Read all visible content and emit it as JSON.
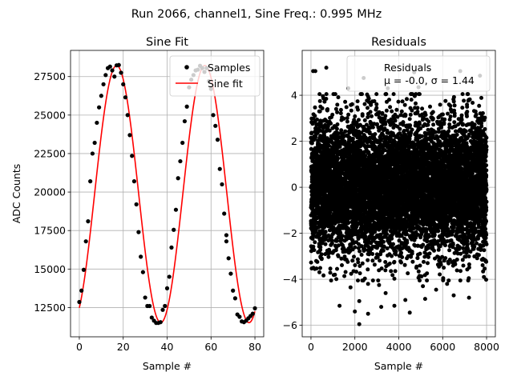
{
  "suptitle": "Run 2066, channel1, Sine Freq.: 0.995 MHz",
  "colors": {
    "samples": "#000000",
    "fit": "#ff0000",
    "residuals": "#000000"
  },
  "chart_data": [
    {
      "type": "line",
      "title": "Sine Fit",
      "xlabel": "Sample #",
      "ylabel": "ADC Counts",
      "xlim": [
        -4,
        84
      ],
      "ylim": [
        10600,
        29200
      ],
      "xticks": [
        0,
        20,
        40,
        60,
        80
      ],
      "xtick_labels": [
        "0",
        "20",
        "40",
        "60",
        "80"
      ],
      "yticks": [
        12500,
        15000,
        17500,
        20000,
        22500,
        25000,
        27500
      ],
      "ytick_labels": [
        "12500",
        "15000",
        "17500",
        "20000",
        "22500",
        "25000",
        "27500"
      ],
      "grid": true,
      "fit_model": {
        "offset": 19870,
        "amplitude": 8350,
        "period_samples": 40.2,
        "peak_at_sample": 17,
        "x_range": [
          0,
          80
        ]
      },
      "legend": {
        "location": "upper right",
        "entries": [
          "Samples",
          "Sine fit"
        ]
      },
      "series": [
        {
          "name": "Samples",
          "style": "dots",
          "x": [
            0,
            1,
            2,
            3,
            4,
            5,
            6,
            7,
            8,
            9,
            10,
            11,
            12,
            13,
            14,
            15,
            16,
            17,
            18,
            19,
            20,
            21,
            22,
            23,
            24,
            25,
            26,
            27,
            28,
            29,
            30,
            31,
            32,
            33,
            34,
            35,
            36,
            37,
            38,
            39,
            40,
            41,
            42,
            43,
            44,
            45,
            46,
            47,
            48,
            49,
            50,
            51,
            52,
            53,
            54,
            55,
            56,
            57,
            58,
            59,
            60,
            61,
            62,
            63,
            64,
            65,
            66,
            67,
            67,
            68,
            69,
            70,
            71,
            72,
            73,
            74,
            75,
            76,
            77,
            78,
            79,
            80
          ],
          "y": [
            12860,
            13600,
            14950,
            16800,
            18100,
            20700,
            22500,
            23200,
            24500,
            25500,
            26250,
            27000,
            27600,
            28050,
            28150,
            27900,
            27500,
            28230,
            28250,
            27750,
            27000,
            26150,
            25000,
            23700,
            22350,
            20700,
            19200,
            17400,
            15800,
            14800,
            13150,
            12600,
            12600,
            11850,
            11650,
            11500,
            11500,
            11550,
            12350,
            12600,
            13750,
            14500,
            16400,
            17550,
            18850,
            20900,
            22000,
            23200,
            24600,
            25550,
            26800,
            27300,
            27600,
            27900,
            27950,
            28200,
            28050,
            27800,
            28050,
            27200,
            26700,
            25000,
            24300,
            23400,
            21500,
            20500,
            18600,
            17200,
            16800,
            15700,
            14700,
            13600,
            13100,
            12050,
            11900,
            11600,
            11550,
            11650,
            11800,
            11950,
            12100,
            12450
          ]
        },
        {
          "name": "Sine fit",
          "style": "line"
        }
      ]
    },
    {
      "type": "scatter",
      "title": "Residuals",
      "xlabel": "Sample #",
      "ylabel": "",
      "xlim": [
        -400,
        8400
      ],
      "ylim": [
        -6.5,
        5.95
      ],
      "xticks": [
        0,
        2000,
        4000,
        6000,
        8000
      ],
      "xtick_labels": [
        "0",
        "2000",
        "4000",
        "6000",
        "8000"
      ],
      "yticks": [
        -6,
        -4,
        -2,
        0,
        2,
        4
      ],
      "ytick_labels": [
        "−6",
        "−4",
        "−2",
        "0",
        "2",
        "4"
      ],
      "grid": true,
      "n_points": 8000,
      "mean": -0.0,
      "sigma": 1.44,
      "legend": {
        "location": "upper right",
        "entries": [
          "Residuals",
          "μ = -0.0, σ = 1.44"
        ]
      },
      "outliers": {
        "x": [
          100,
          200,
          700,
          1300,
          1700,
          2000,
          2200,
          2400,
          2600,
          3200,
          3800,
          4500,
          4700,
          5200,
          5700,
          6200,
          6800,
          7200,
          7700,
          2200,
          3400,
          5100,
          4300,
          1800,
          2600,
          3100,
          3500,
          4900,
          6500
        ],
        "y": [
          5.05,
          5.05,
          5.2,
          -5.15,
          4.3,
          -5.4,
          -5.95,
          4.75,
          -5.5,
          -5.2,
          -5.15,
          -5.45,
          5.0,
          -4.85,
          -4.45,
          -4.2,
          5.05,
          -4.8,
          4.85,
          -4.95,
          -4.6,
          -4.3,
          -4.9,
          -4.35,
          -4.2,
          -4.25,
          4.3,
          4.35,
          -4.7
        ]
      }
    }
  ]
}
